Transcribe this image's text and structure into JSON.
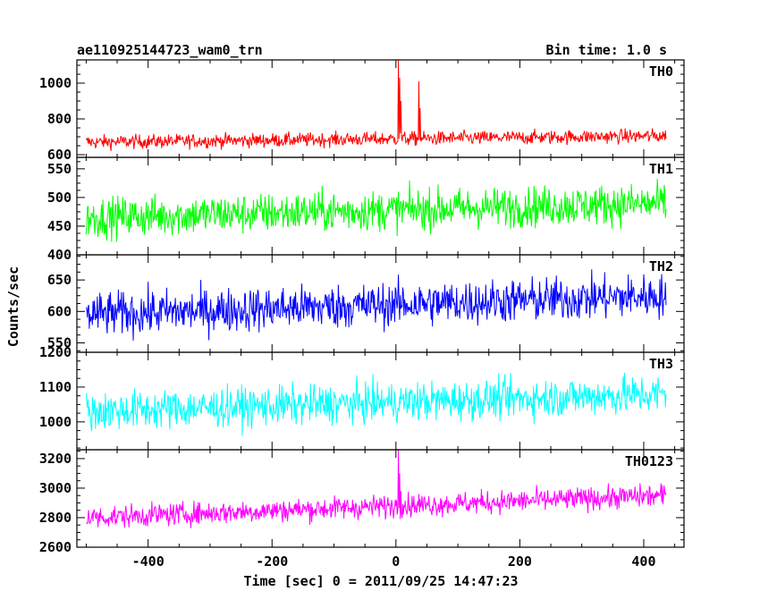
{
  "chart_data": {
    "type": "line",
    "title": "ae110925144723_wam0_trn",
    "bin_time": "Bin time: 1.0 s",
    "xlabel": "Time [sec] 0 = 2011/09/25 14:47:23",
    "ylabel": "Counts/sec",
    "xlim": [
      -515,
      465
    ],
    "data_x_range": [
      -500,
      436
    ],
    "x_ticks": [
      -400,
      -200,
      0,
      200,
      400
    ],
    "panels": [
      {
        "name": "TH0",
        "color": "#ff0000",
        "ylim": [
          585,
          1130
        ],
        "y_ticks": [
          600,
          800,
          1000
        ],
        "baseline_start": 670,
        "baseline_end": 705,
        "noise": 28,
        "spikes": [
          {
            "x": 4,
            "y": 1130
          },
          {
            "x": 6,
            "y": 1030
          },
          {
            "x": 8,
            "y": 900
          },
          {
            "x": 37,
            "y": 1010
          },
          {
            "x": 39,
            "y": 860
          }
        ]
      },
      {
        "name": "TH1",
        "color": "#00ff00",
        "ylim": [
          400,
          570
        ],
        "y_ticks": [
          400,
          450,
          500,
          550
        ],
        "baseline_start": 465,
        "baseline_end": 490,
        "noise": 25,
        "spikes": []
      },
      {
        "name": "TH2",
        "color": "#0000ff",
        "ylim": [
          535,
          690
        ],
        "y_ticks": [
          550,
          600,
          650
        ],
        "baseline_start": 595,
        "baseline_end": 625,
        "noise": 25,
        "spikes": []
      },
      {
        "name": "TH3",
        "color": "#00ffff",
        "ylim": [
          920,
          1200
        ],
        "y_ticks": [
          1000,
          1100,
          1200
        ],
        "baseline_start": 1030,
        "baseline_end": 1080,
        "noise": 40,
        "spikes": []
      },
      {
        "name": "TH0123",
        "color": "#ff00ff",
        "ylim": [
          2600,
          3260
        ],
        "y_ticks": [
          2600,
          2800,
          3000,
          3200
        ],
        "baseline_start": 2800,
        "baseline_end": 2950,
        "noise": 55,
        "spikes": [
          {
            "x": 4,
            "y": 3260
          },
          {
            "x": 6,
            "y": 3100
          },
          {
            "x": 8,
            "y": 2980
          },
          {
            "x": 37,
            "y": 2960
          }
        ]
      }
    ]
  }
}
